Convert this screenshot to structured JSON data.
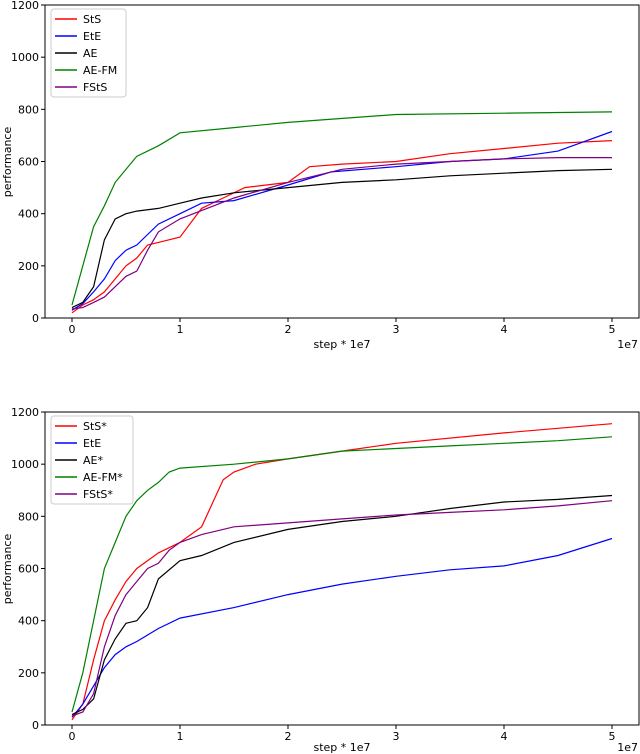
{
  "chart_data": [
    {
      "type": "line",
      "title": "",
      "xlabel": "step * 1e7",
      "ylabel": "performance",
      "offset_text": "1e7",
      "xlim": [
        -0.25,
        5.25
      ],
      "ylim": [
        0,
        1200
      ],
      "xticks": [
        0,
        1,
        2,
        3,
        4,
        5
      ],
      "xtick_labels": [
        "0",
        "1",
        "2",
        "3",
        "4",
        "5"
      ],
      "yticks": [
        0,
        200,
        400,
        600,
        800,
        1000,
        1200
      ],
      "ytick_labels": [
        "0",
        "200",
        "400",
        "600",
        "800",
        "1000",
        "1200"
      ],
      "grid": false,
      "legend_position": "top-left",
      "series": [
        {
          "name": "StS",
          "color": "#ff0000",
          "x": [
            0,
            0.1,
            0.2,
            0.3,
            0.4,
            0.5,
            0.6,
            0.7,
            0.8,
            1.0,
            1.2,
            1.4,
            1.6,
            2.0,
            2.2,
            2.5,
            3.0,
            3.5,
            4.0,
            4.5,
            5.0
          ],
          "y": [
            20,
            50,
            70,
            100,
            150,
            200,
            230,
            280,
            290,
            310,
            420,
            460,
            500,
            520,
            580,
            590,
            600,
            630,
            650,
            670,
            680
          ]
        },
        {
          "name": "EtE",
          "color": "#0000ff",
          "x": [
            0,
            0.1,
            0.2,
            0.3,
            0.4,
            0.5,
            0.6,
            0.7,
            0.8,
            1.0,
            1.2,
            1.5,
            2.0,
            2.4,
            3.0,
            3.5,
            4.0,
            4.5,
            5.0
          ],
          "y": [
            30,
            55,
            100,
            150,
            220,
            260,
            280,
            320,
            360,
            400,
            440,
            450,
            510,
            560,
            580,
            600,
            610,
            640,
            715
          ]
        },
        {
          "name": "AE",
          "color": "#000000",
          "x": [
            0,
            0.1,
            0.2,
            0.3,
            0.4,
            0.5,
            0.6,
            0.8,
            1.0,
            1.2,
            1.5,
            2.0,
            2.5,
            3.0,
            3.5,
            4.0,
            4.5,
            5.0
          ],
          "y": [
            40,
            60,
            120,
            300,
            380,
            400,
            410,
            420,
            440,
            460,
            480,
            500,
            520,
            530,
            545,
            555,
            565,
            570
          ]
        },
        {
          "name": "AE-FM",
          "color": "#008000",
          "x": [
            0,
            0.1,
            0.2,
            0.3,
            0.4,
            0.5,
            0.6,
            0.8,
            1.0,
            1.5,
            2.0,
            3.0,
            4.0,
            5.0
          ],
          "y": [
            50,
            200,
            350,
            430,
            520,
            570,
            620,
            660,
            710,
            730,
            750,
            780,
            785,
            790
          ]
        },
        {
          "name": "FStS",
          "color": "#800080",
          "x": [
            0,
            0.1,
            0.2,
            0.3,
            0.4,
            0.5,
            0.6,
            0.7,
            0.8,
            1.0,
            1.5,
            2.0,
            2.5,
            3.0,
            3.5,
            4.0,
            4.5,
            5.0
          ],
          "y": [
            35,
            40,
            60,
            80,
            120,
            160,
            180,
            260,
            330,
            380,
            460,
            520,
            570,
            590,
            600,
            610,
            615,
            615
          ]
        }
      ]
    },
    {
      "type": "line",
      "title": "",
      "xlabel": "step * 1e7",
      "ylabel": "performance",
      "offset_text": "1e7",
      "xlim": [
        -0.25,
        5.25
      ],
      "ylim": [
        0,
        1200
      ],
      "xticks": [
        0,
        1,
        2,
        3,
        4,
        5
      ],
      "xtick_labels": [
        "0",
        "1",
        "2",
        "3",
        "4",
        "5"
      ],
      "yticks": [
        0,
        200,
        400,
        600,
        800,
        1000,
        1200
      ],
      "ytick_labels": [
        "0",
        "200",
        "400",
        "600",
        "800",
        "1000",
        "1200"
      ],
      "grid": false,
      "legend_position": "top-left",
      "series": [
        {
          "name": "StS*",
          "color": "#ff0000",
          "x": [
            0,
            0.1,
            0.2,
            0.3,
            0.4,
            0.5,
            0.6,
            0.8,
            1.0,
            1.2,
            1.3,
            1.4,
            1.5,
            1.7,
            2.0,
            2.5,
            3.0,
            4.0,
            5.0
          ],
          "y": [
            20,
            80,
            250,
            400,
            480,
            550,
            600,
            660,
            700,
            760,
            850,
            940,
            970,
            1000,
            1020,
            1050,
            1080,
            1120,
            1155
          ]
        },
        {
          "name": "EtE",
          "color": "#0000ff",
          "x": [
            0,
            0.1,
            0.2,
            0.3,
            0.4,
            0.5,
            0.6,
            0.8,
            1.0,
            1.5,
            2.0,
            2.5,
            3.0,
            3.5,
            4.0,
            4.5,
            5.0
          ],
          "y": [
            30,
            80,
            150,
            220,
            270,
            300,
            320,
            370,
            410,
            450,
            500,
            540,
            570,
            595,
            610,
            650,
            715
          ]
        },
        {
          "name": "AE*",
          "color": "#000000",
          "x": [
            0,
            0.1,
            0.2,
            0.3,
            0.4,
            0.5,
            0.6,
            0.7,
            0.8,
            1.0,
            1.2,
            1.5,
            2.0,
            2.5,
            3.0,
            3.5,
            4.0,
            4.5,
            5.0
          ],
          "y": [
            40,
            60,
            100,
            250,
            330,
            390,
            400,
            450,
            560,
            630,
            650,
            700,
            750,
            780,
            800,
            830,
            855,
            865,
            880
          ]
        },
        {
          "name": "AE-FM*",
          "color": "#008000",
          "x": [
            0,
            0.1,
            0.2,
            0.3,
            0.4,
            0.5,
            0.6,
            0.7,
            0.8,
            0.9,
            1.0,
            1.5,
            2.0,
            2.5,
            3.0,
            3.5,
            4.0,
            4.5,
            5.0
          ],
          "y": [
            50,
            200,
            400,
            600,
            700,
            800,
            860,
            900,
            930,
            970,
            985,
            1000,
            1020,
            1050,
            1060,
            1070,
            1080,
            1090,
            1105
          ]
        },
        {
          "name": "FStS*",
          "color": "#800080",
          "x": [
            0,
            0.1,
            0.2,
            0.3,
            0.4,
            0.5,
            0.6,
            0.7,
            0.8,
            0.9,
            1.0,
            1.2,
            1.5,
            2.0,
            2.5,
            3.0,
            3.5,
            4.0,
            4.5,
            5.0
          ],
          "y": [
            35,
            50,
            120,
            300,
            420,
            500,
            550,
            600,
            620,
            670,
            700,
            730,
            760,
            775,
            790,
            805,
            815,
            825,
            840,
            860
          ]
        }
      ]
    }
  ]
}
